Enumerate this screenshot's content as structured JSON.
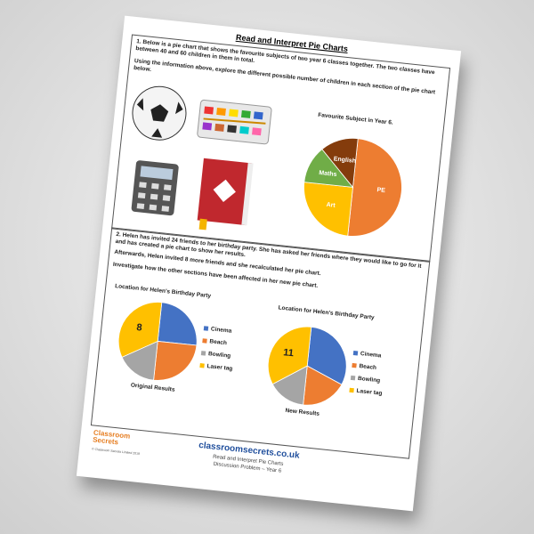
{
  "title": "Read and Interpret Pie Charts",
  "question1": {
    "text": "1. Below is a pie chart that shows the favourite subjects of two year 6 classes together. The two classes have between 40 and 60 children in them in total.",
    "task": "Using the information above, explore the different possible number of children in each section of the pie chart below.",
    "chart": {
      "type": "pie",
      "title": "Favourite Subject in Year 6.",
      "categories": [
        "PE",
        "Art",
        "Maths",
        "English"
      ],
      "values": [
        50,
        25,
        12.5,
        12.5
      ],
      "colors": [
        "#ed7d31",
        "#ffc000",
        "#70ad47",
        "#843c0c"
      ]
    }
  },
  "question2": {
    "text": "2. Helen has invited 24 friends to her birthday party. She has asked her friends where they would like to go for it and has created a pie chart to show her results.",
    "text2": "Afterwards, Helen invited 8 more friends and she recalculated her pie chart.",
    "task": "Investigate how the other sections have been affected in her new pie chart.",
    "charts": [
      {
        "type": "pie",
        "title": "Location for Helen's Birthday Party",
        "caption": "Original Results",
        "categories": [
          "Cinema",
          "Beach",
          "Bowling",
          "Laser tag"
        ],
        "values": [
          6,
          6,
          4,
          8
        ],
        "colors": [
          "#4472c4",
          "#ed7d31",
          "#a5a5a5",
          "#ffc000"
        ]
      },
      {
        "type": "pie",
        "title": "Location for Helen's Birthday Party",
        "caption": "New Results",
        "categories": [
          "Cinema",
          "Beach",
          "Bowling",
          "Laser tag"
        ],
        "values": [
          10,
          6,
          5,
          11
        ],
        "colors": [
          "#4472c4",
          "#ed7d31",
          "#a5a5a5",
          "#ffc000"
        ]
      }
    ]
  },
  "footer": {
    "website": "classroomsecrets.co.uk",
    "line1": "Read and Interpret Pie Charts",
    "line2": "Discussion Problem – Year 6",
    "logo": "Classroom Secrets",
    "copyright": "© Classroom Secrets Limited 2019"
  }
}
